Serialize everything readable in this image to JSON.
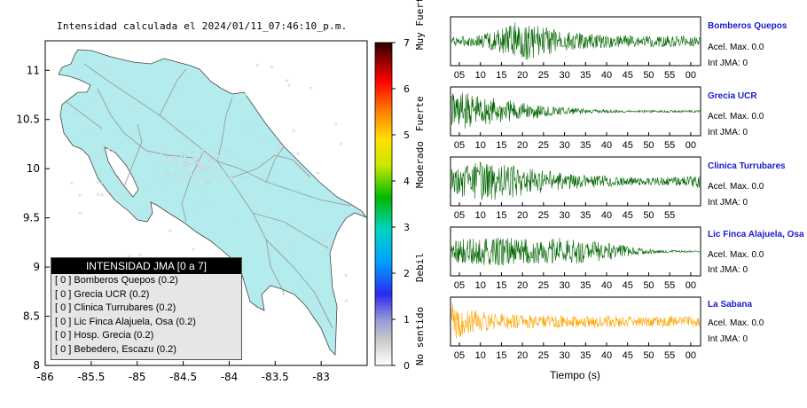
{
  "title": "Intensidad calculada el 2024/01/11_07:46:10_p.m.",
  "chart_data": [
    {
      "type": "scatter",
      "xlim": [
        -86,
        -82.5
      ],
      "ylim": [
        8,
        11.3
      ],
      "x_ticks": [
        "-86",
        "-85.5",
        "-85",
        "-84.5",
        "-84",
        "-83.5",
        "-83"
      ],
      "y_ticks": [
        "8",
        "8.5",
        "9",
        "9.5",
        "10",
        "10.5",
        "11"
      ],
      "grid": false,
      "legend_position": "bottom-left",
      "legend": {
        "title": "INTENSIDAD JMA [0 a 7]",
        "entries": [
          "[ 0 ]  Bomberos Quepos (0.2)",
          "[ 0 ]  Grecia UCR (0.2)",
          "[ 0 ]  Clinica Turrubares (0.2)",
          "[ 0 ]  Lic Finca Alajuela, Osa (0.2)",
          "[ 0 ]  Hosp. Grecia (0.2)",
          "[ 0 ]  Bebedero, Escazu (0.2)"
        ]
      }
    },
    {
      "type": "heatmap",
      "colorbar_ticks": [
        "0",
        "1",
        "2",
        "3",
        "4",
        "5",
        "6",
        "7"
      ],
      "colorbar_labels": [
        "No sentido",
        "Debil",
        "Moderado",
        "Fuerte",
        "Muy Fuerte"
      ]
    },
    {
      "type": "line",
      "xlabel": "Tiempo (s)",
      "series": [
        {
          "name": "Bomberos Quepos",
          "ticks": [
            "05",
            "10",
            "15",
            "20",
            "25",
            "30",
            "35",
            "40",
            "45",
            "50",
            "55",
            "00"
          ],
          "acel": "Acel. Max. 0.0",
          "jma": "Int JMA: 0",
          "color": "#006400",
          "envelope": [
            0.2,
            0.25,
            0.5,
            0.95,
            0.7,
            0.45,
            0.35,
            0.3,
            0.28,
            0.26,
            0.25,
            0.24
          ]
        },
        {
          "name": "Grecia UCR",
          "ticks": [
            "05",
            "10",
            "15",
            "20",
            "25",
            "30",
            "35",
            "40",
            "45",
            "50",
            "55",
            "00"
          ],
          "acel": "Acel. Max. 0.0",
          "jma": "Int JMA: 0",
          "color": "#006400",
          "envelope": [
            0.95,
            0.8,
            0.6,
            0.45,
            0.3,
            0.2,
            0.12,
            0.08,
            0.06,
            0.05,
            0.05,
            0.05
          ]
        },
        {
          "name": "Clinica Turrubares",
          "ticks": [
            "05",
            "10",
            "15",
            "20",
            "25",
            "30",
            "35",
            "40",
            "45",
            "50",
            "55"
          ],
          "acel": "Acel. Max. 0.0",
          "jma": "Int JMA: 0",
          "color": "#006400",
          "envelope": [
            0.6,
            0.9,
            0.85,
            0.7,
            0.55,
            0.4,
            0.3,
            0.25,
            0.2,
            0.18,
            0.2,
            0.3
          ]
        },
        {
          "name": "Lic Finca Alajuela, Osa",
          "ticks": [
            "05",
            "10",
            "15",
            "20",
            "25",
            "30",
            "35",
            "40",
            "45",
            "50",
            "55",
            "00"
          ],
          "acel": "Acel. Max. 0.0",
          "jma": "Int JMA: 0",
          "color": "#006400",
          "envelope": [
            0.5,
            0.65,
            0.7,
            0.6,
            0.55,
            0.65,
            0.5,
            0.4,
            0.2,
            0.08,
            0.05,
            0.04
          ]
        },
        {
          "name": "La Sabana",
          "ticks": [
            "05",
            "10",
            "15",
            "20",
            "25",
            "30",
            "35",
            "40",
            "45",
            "50",
            "55",
            "00"
          ],
          "acel": "Acel. Max. 0.0",
          "jma": "Int JMA: 0",
          "color": "#FFA500",
          "envelope": [
            0.9,
            0.55,
            0.4,
            0.35,
            0.3,
            0.28,
            0.27,
            0.26,
            0.25,
            0.25,
            0.24,
            0.24
          ]
        }
      ]
    }
  ]
}
